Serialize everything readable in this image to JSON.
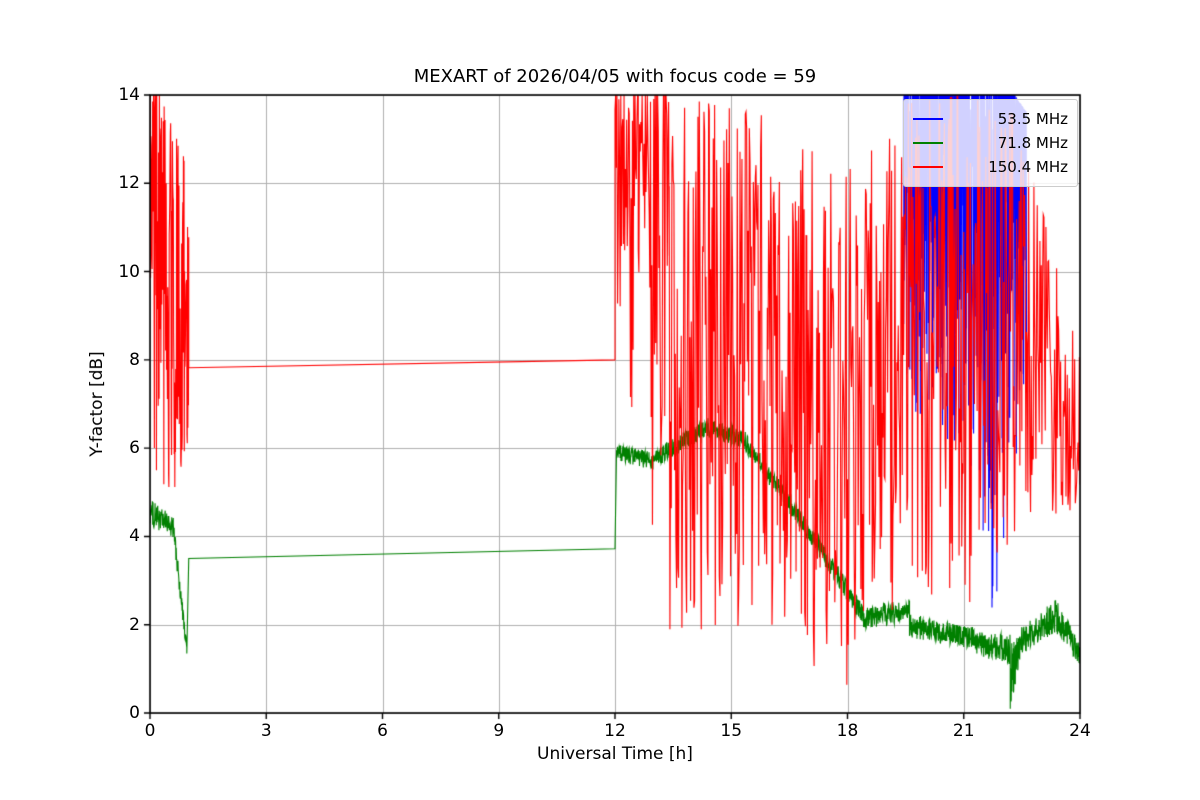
{
  "chart_data": {
    "type": "line",
    "title": "MEXART of 2026/04/05 with focus code = 59",
    "xlabel": "Universal Time [h]",
    "ylabel": "Y-factor [dB]",
    "xlim": [
      0,
      24
    ],
    "ylim": [
      0,
      14
    ],
    "xticks": [
      0,
      3,
      6,
      9,
      12,
      15,
      18,
      21,
      24
    ],
    "yticks": [
      0,
      2,
      4,
      6,
      8,
      10,
      12,
      14
    ],
    "grid": true,
    "grid_color": "#b0b0b0",
    "background": "#ffffff",
    "legend_position": "upper right",
    "series": [
      {
        "name": "53.5 MHz",
        "color": "#0000ff",
        "note": "dense saturated band clipped at y=14, visible only ~19.4-22.6 h, deepest spike to ~0.2 near 21.9 h",
        "segments": [
          {
            "t0": 19.45,
            "t1": 20.3,
            "lo": [
              6.5,
              5.5
            ],
            "hi": [
              14,
              14
            ],
            "bias": 0.45,
            "sat": 0.4,
            "pph": 240
          },
          {
            "t0": 20.3,
            "t1": 21.05,
            "lo": [
              4.6,
              6.0
            ],
            "hi": [
              14,
              14
            ],
            "bias": 0.5,
            "sat": 0.4,
            "pph": 240
          },
          {
            "t0": 21.05,
            "t1": 21.5,
            "lo": [
              6.5,
              2.2
            ],
            "hi": [
              14,
              14
            ],
            "bias": 0.55,
            "sat": 0.35,
            "pph": 240
          },
          {
            "t0": 21.5,
            "t1": 21.95,
            "lo": [
              2.0,
              0.2
            ],
            "hi": [
              14,
              14
            ],
            "bias": 0.6,
            "sat": 0.35,
            "pph": 240
          },
          {
            "t0": 21.95,
            "t1": 22.3,
            "lo": [
              2.8,
              4.0
            ],
            "hi": [
              14,
              14
            ],
            "bias": 0.5,
            "sat": 0.4,
            "pph": 240
          },
          {
            "t0": 22.3,
            "t1": 22.62,
            "lo": [
              4.0,
              6.3
            ],
            "hi": [
              14,
              13.6
            ],
            "bias": 0.5,
            "sat": 0.35,
            "pph": 240
          }
        ]
      },
      {
        "name": "71.8 MHz",
        "color": "#008000",
        "note": "narrow noisy band; gap interpolated as straight line 3.5->3.7 between 1 h and 12 h; jump to ~5.9 at 12 h; slow decline after 15 h; dip to ~0 near 22.3 h",
        "segments": [
          {
            "t0": 0,
            "t1": 0.6,
            "lo": [
              4.25,
              3.95
            ],
            "hi": [
              4.85,
              4.45
            ],
            "bias": 1,
            "pph": 130
          },
          {
            "t0": 0.6,
            "t1": 0.95,
            "lo": [
              3.95,
              1.25
            ],
            "hi": [
              4.45,
              1.6
            ],
            "bias": 1,
            "pph": 130
          },
          {
            "t0": 0.95,
            "t1": 1.0,
            "mode": "line",
            "v": [
              1.35,
              3.5
            ]
          },
          {
            "t0": 1.0,
            "t1": 12.0,
            "mode": "line",
            "v": [
              3.5,
              3.72
            ]
          },
          {
            "t0": 12.0,
            "t1": 12.04,
            "mode": "line",
            "v": [
              3.72,
              5.95
            ]
          },
          {
            "t0": 12.04,
            "t1": 13.0,
            "lo": [
              5.7,
              5.5
            ],
            "hi": [
              6.1,
              5.9
            ],
            "bias": 1,
            "pph": 130
          },
          {
            "t0": 13.0,
            "t1": 14.4,
            "lo": [
              5.55,
              6.25
            ],
            "hi": [
              5.95,
              6.7
            ],
            "bias": 1,
            "pph": 130
          },
          {
            "t0": 14.4,
            "t1": 15.3,
            "lo": [
              6.2,
              6.0
            ],
            "hi": [
              6.65,
              6.45
            ],
            "bias": 1,
            "pph": 130
          },
          {
            "t0": 15.3,
            "t1": 17.0,
            "lo": [
              6.0,
              3.9
            ],
            "hi": [
              6.45,
              4.35
            ],
            "bias": 1,
            "pph": 130
          },
          {
            "t0": 17.0,
            "t1": 18.4,
            "lo": [
              3.9,
              1.95
            ],
            "hi": [
              4.35,
              2.45
            ],
            "bias": 1,
            "pph": 130
          },
          {
            "t0": 18.4,
            "t1": 19.6,
            "lo": [
              1.9,
              2.05
            ],
            "hi": [
              2.4,
              2.6
            ],
            "bias": 1,
            "pph": 130
          },
          {
            "t0": 19.6,
            "t1": 21.3,
            "lo": [
              1.7,
              1.45
            ],
            "hi": [
              2.25,
              1.95
            ],
            "bias": 1,
            "pph": 130
          },
          {
            "t0": 21.3,
            "t1": 22.2,
            "lo": [
              1.3,
              1.1
            ],
            "hi": [
              1.85,
              1.8
            ],
            "bias": 1,
            "pph": 130
          },
          {
            "t0": 22.2,
            "t1": 22.45,
            "lo": [
              0.05,
              1.2
            ],
            "hi": [
              1.55,
              1.8
            ],
            "bias": 1.3,
            "pph": 200
          },
          {
            "t0": 22.45,
            "t1": 23.4,
            "lo": [
              1.3,
              1.85
            ],
            "hi": [
              1.9,
              2.6
            ],
            "bias": 1,
            "pph": 130
          },
          {
            "t0": 23.4,
            "t1": 24.0,
            "lo": [
              1.8,
              1.05
            ],
            "hi": [
              2.55,
              1.55
            ],
            "bias": 1,
            "pph": 130
          }
        ]
      },
      {
        "name": "150.4 MHz",
        "color": "#ff0000",
        "note": "very spiky 0-1 h reaching 14; gap interpolated as straight line 7.8->8.0 between 1 h and 12 h; wild spikes 12-24 h spanning ~0-14, dipping to ~0 near 17.5 h",
        "segments": [
          {
            "t0": 0,
            "t1": 0.25,
            "lo": [
              6.0,
              5.2
            ],
            "hi": [
              14,
              14
            ],
            "bias": 0.8,
            "sat": 0.25,
            "pph": 130
          },
          {
            "t0": 0.25,
            "t1": 1.0,
            "lo": [
              5.2,
              4.6
            ],
            "hi": [
              14,
              12.3
            ],
            "bias": 0.9,
            "sat": 0.05,
            "pph": 130
          },
          {
            "t0": 1.0,
            "t1": 12.0,
            "mode": "line",
            "v": [
              7.82,
              8.0
            ]
          },
          {
            "t0": 12.0,
            "t1": 12.6,
            "lo": [
              6.5,
              5.5
            ],
            "hi": [
              14,
              14
            ],
            "bias": 0.5,
            "sat": 0.3,
            "pph": 60
          },
          {
            "t0": 12.6,
            "t1": 13.4,
            "lo": [
              2.0,
              3.0
            ],
            "hi": [
              14,
              14
            ],
            "bias": 0.55,
            "sat": 0.2,
            "pph": 60
          },
          {
            "t0": 13.4,
            "t1": 16.0,
            "lo": [
              1.8,
              1.8
            ],
            "hi": [
              14,
              13.5
            ],
            "bias": 0.85,
            "sat": 0.06,
            "pph": 58
          },
          {
            "t0": 16.0,
            "t1": 18.0,
            "lo": [
              1.5,
              0.1
            ],
            "hi": [
              13,
              12.5
            ],
            "bias": 0.95,
            "sat": 0.03,
            "pph": 58
          },
          {
            "t0": 18.0,
            "t1": 19.5,
            "lo": [
              1.5,
              2.5
            ],
            "hi": [
              12.5,
              13.2
            ],
            "bias": 1.0,
            "sat": 0.03,
            "pph": 58
          },
          {
            "t0": 19.5,
            "t1": 21.0,
            "lo": [
              3.0,
              2.0
            ],
            "hi": [
              13.8,
              14
            ],
            "bias": 0.8,
            "sat": 0.1,
            "pph": 58
          },
          {
            "t0": 21.0,
            "t1": 22.5,
            "lo": [
              2.0,
              3.0
            ],
            "hi": [
              14,
              13.5
            ],
            "bias": 0.9,
            "sat": 0.08,
            "pph": 58
          },
          {
            "t0": 22.5,
            "t1": 24.0,
            "lo": [
              3.5,
              4.5
            ],
            "hi": [
              13.2,
              8.0
            ],
            "bias": 0.9,
            "sat": 0.03,
            "pph": 58
          }
        ]
      }
    ]
  }
}
